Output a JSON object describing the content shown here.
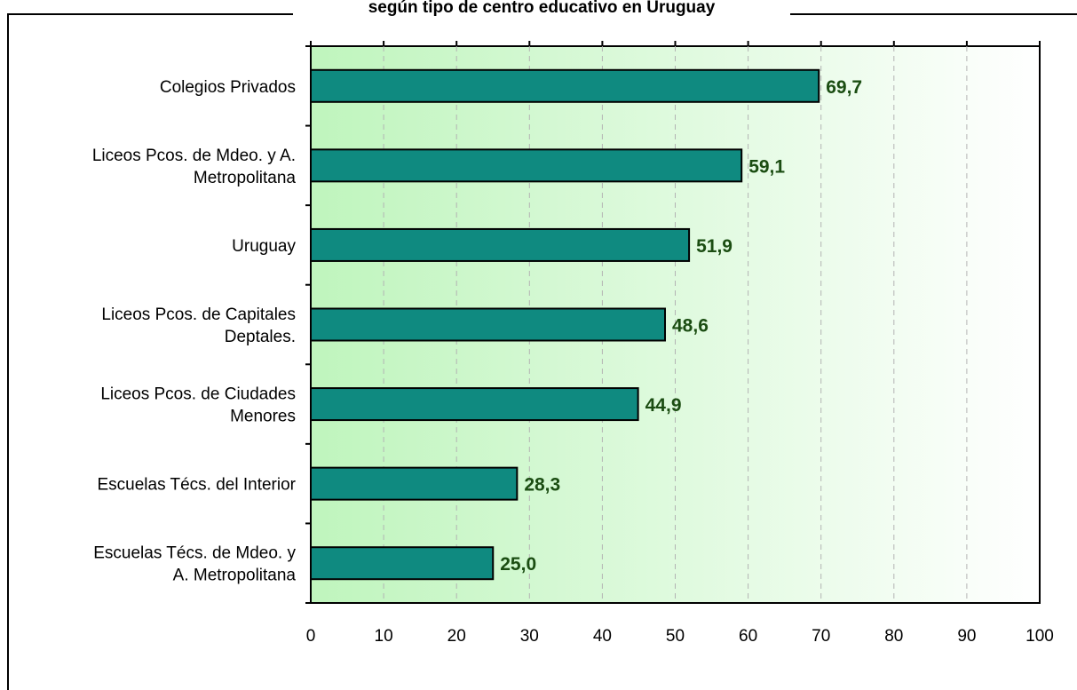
{
  "chart_data": {
    "type": "bar",
    "orientation": "horizontal",
    "title": "según tipo de centro educativo en Uruguay",
    "categories": [
      "Colegios Privados",
      "Liceos Pcos. de Mdeo. y A. Metropolitana",
      "Uruguay",
      "Liceos Pcos. de Capitales Deptales.",
      "Liceos Pcos. de Ciudades Menores",
      "Escuelas Técs. del Interior",
      "Escuelas Técs. de Mdeo. y A. Metropolitana"
    ],
    "category_lines": [
      [
        "Colegios Privados"
      ],
      [
        "Liceos Pcos. de Mdeo. y A.",
        "Metropolitana"
      ],
      [
        "Uruguay"
      ],
      [
        "Liceos Pcos. de Capitales",
        "Deptales."
      ],
      [
        "Liceos Pcos. de Ciudades",
        "Menores"
      ],
      [
        "Escuelas Técs. del Interior"
      ],
      [
        "Escuelas Técs. de Mdeo. y",
        "A. Metropolitana"
      ]
    ],
    "values": [
      69.7,
      59.1,
      51.9,
      48.6,
      44.9,
      28.3,
      25.0
    ],
    "value_labels": [
      "69,7",
      "59,1",
      "51,9",
      "48,6",
      "44,9",
      "28,3",
      "25,0"
    ],
    "xlim": [
      0,
      100
    ],
    "xticks": [
      0,
      10,
      20,
      30,
      40,
      50,
      60,
      70,
      80,
      90,
      100
    ],
    "xlabel": "",
    "ylabel": "",
    "grid": "vertical dashed",
    "legend": "none",
    "colors": {
      "bar_fill": "#0f8a80",
      "bar_stroke": "#000000",
      "data_label": "#1b4d12",
      "plot_bg_left": "#bff5bd",
      "plot_bg_right": "#ffffff",
      "grid": "#b3b3b3"
    }
  }
}
